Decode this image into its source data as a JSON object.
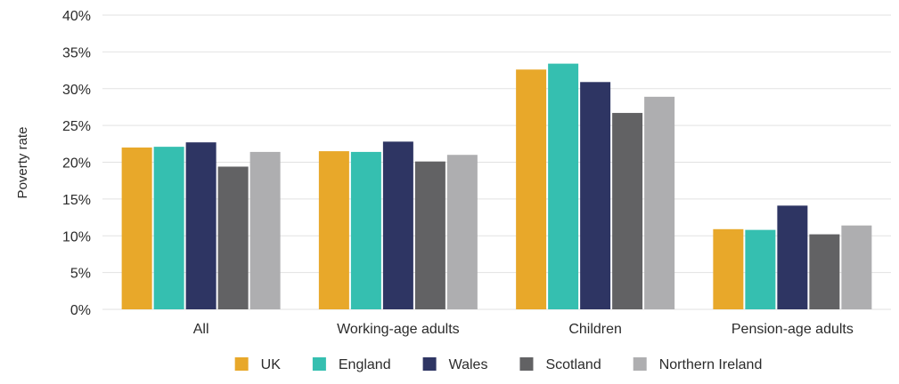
{
  "chart_data": {
    "type": "bar",
    "title": "",
    "xlabel": "",
    "ylabel": "Poverty rate",
    "ylim": [
      0,
      40
    ],
    "yticks": [
      "0%",
      "5%",
      "10%",
      "15%",
      "20%",
      "25%",
      "30%",
      "35%",
      "40%"
    ],
    "grid": "horizontal",
    "legend_position": "bottom",
    "categories": [
      "All",
      "Working-age adults",
      "Children",
      "Pension-age adults"
    ],
    "series": [
      {
        "name": "UK",
        "color": "#E8A82A",
        "values": [
          22.0,
          21.5,
          32.6,
          10.9
        ]
      },
      {
        "name": "England",
        "color": "#35BFB0",
        "values": [
          22.1,
          21.4,
          33.4,
          10.8
        ]
      },
      {
        "name": "Wales",
        "color": "#2E3563",
        "values": [
          22.7,
          22.8,
          30.9,
          14.1
        ]
      },
      {
        "name": "Scotland",
        "color": "#626264",
        "values": [
          19.4,
          20.1,
          26.7,
          10.2
        ]
      },
      {
        "name": "Northern Ireland",
        "color": "#AEAEB0",
        "values": [
          21.4,
          21.0,
          28.9,
          11.4
        ]
      }
    ]
  }
}
